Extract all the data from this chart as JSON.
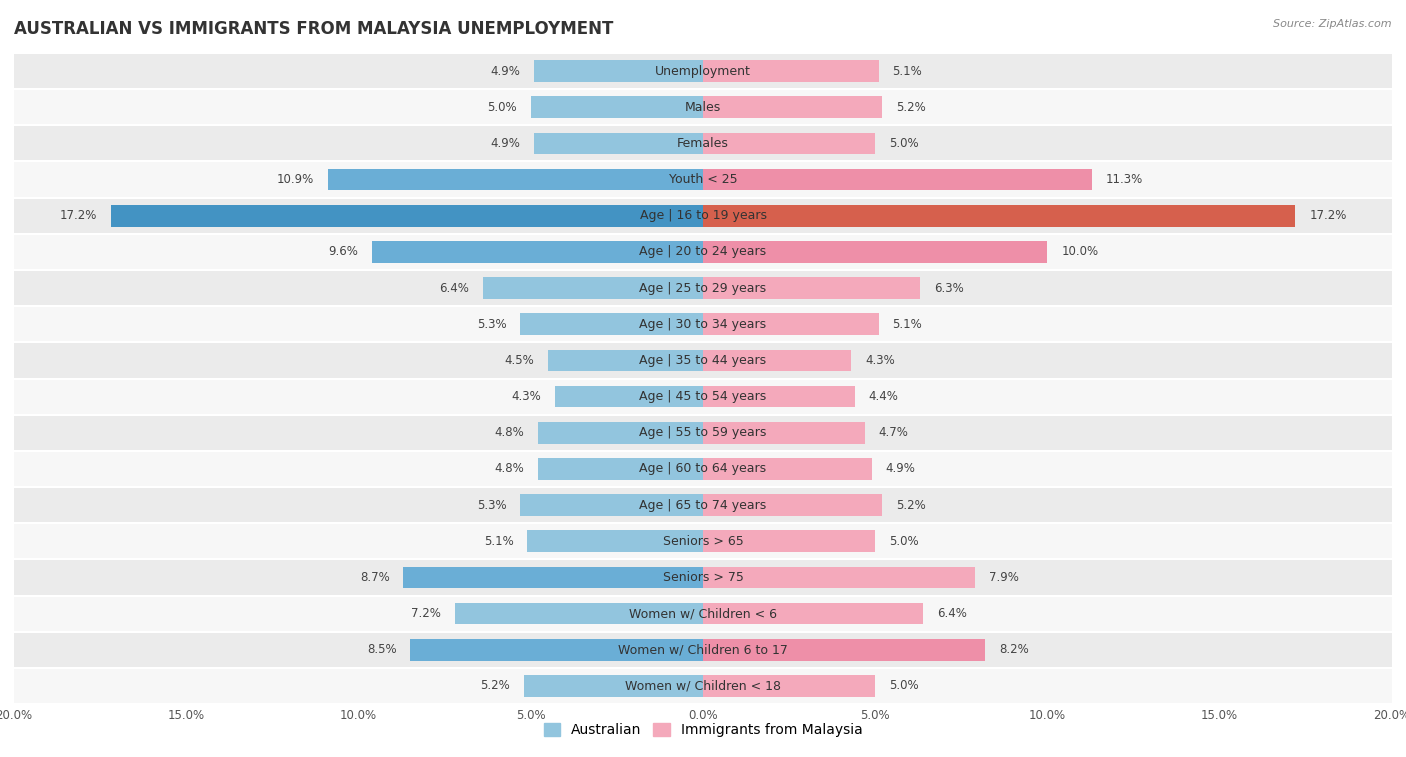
{
  "title": "AUSTRALIAN VS IMMIGRANTS FROM MALAYSIA UNEMPLOYMENT",
  "source": "Source: ZipAtlas.com",
  "categories": [
    "Unemployment",
    "Males",
    "Females",
    "Youth < 25",
    "Age | 16 to 19 years",
    "Age | 20 to 24 years",
    "Age | 25 to 29 years",
    "Age | 30 to 34 years",
    "Age | 35 to 44 years",
    "Age | 45 to 54 years",
    "Age | 55 to 59 years",
    "Age | 60 to 64 years",
    "Age | 65 to 74 years",
    "Seniors > 65",
    "Seniors > 75",
    "Women w/ Children < 6",
    "Women w/ Children 6 to 17",
    "Women w/ Children < 18"
  ],
  "australian": [
    4.9,
    5.0,
    4.9,
    10.9,
    17.2,
    9.6,
    6.4,
    5.3,
    4.5,
    4.3,
    4.8,
    4.8,
    5.3,
    5.1,
    8.7,
    7.2,
    8.5,
    5.2
  ],
  "immigrants": [
    5.1,
    5.2,
    5.0,
    11.3,
    17.2,
    10.0,
    6.3,
    5.1,
    4.3,
    4.4,
    4.7,
    4.9,
    5.2,
    5.0,
    7.9,
    6.4,
    8.2,
    5.0
  ],
  "australian_color_normal": "#92C5DE",
  "australian_color_medium": "#6aaed6",
  "australian_color_high": "#4393C3",
  "immigrants_color_normal": "#F4A9BB",
  "immigrants_color_medium": "#ee8fa8",
  "immigrants_color_high": "#D6604D",
  "xlim": 20.0,
  "row_color_odd": "#ebebeb",
  "row_color_even": "#f7f7f7",
  "title_fontsize": 12,
  "label_fontsize": 9,
  "value_fontsize": 8.5,
  "legend_fontsize": 10,
  "legend_australian": "Australian",
  "legend_immigrants": "Immigrants from Malaysia",
  "bar_height": 0.6
}
